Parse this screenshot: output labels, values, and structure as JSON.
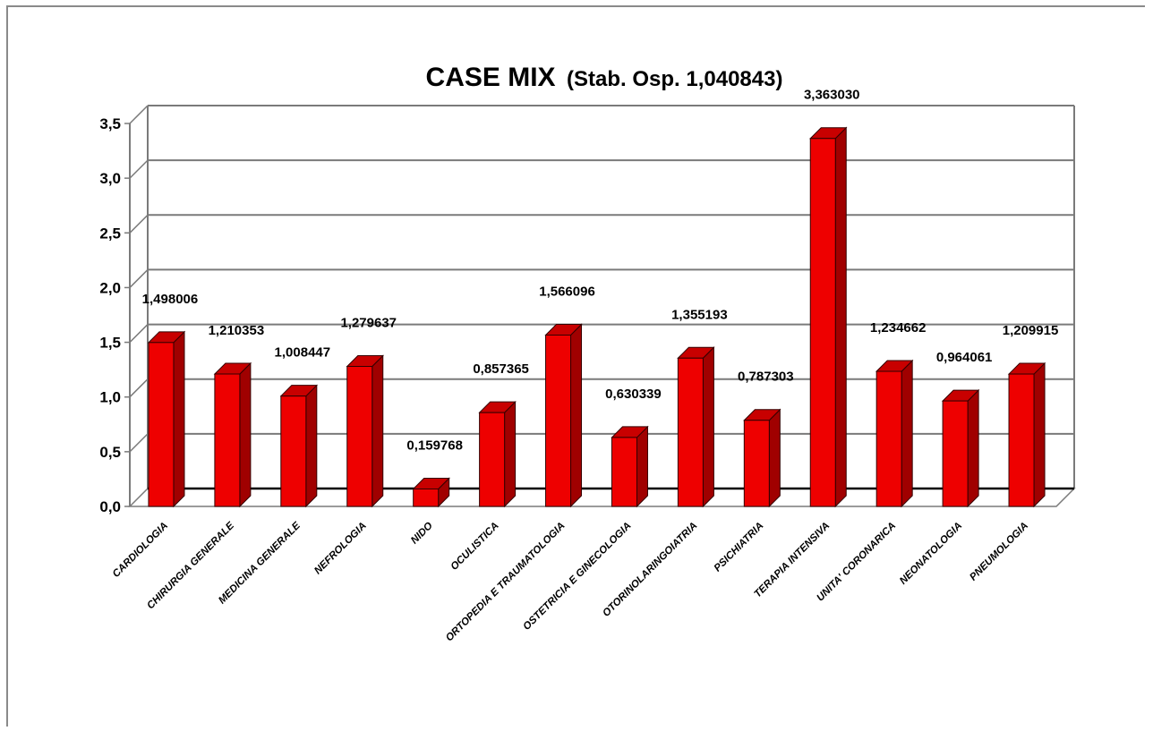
{
  "chart_data": {
    "type": "bar",
    "title": "CASE MIX",
    "subtitle": "(Stab. Osp. 1,040843)",
    "categories": [
      "CARDIOLOGIA",
      "CHIRURGIA GENERALE",
      "MEDICINA GENERALE",
      "NEFROLOGIA",
      "NIDO",
      "OCULISTICA",
      "ORTOPEDIA E TRAUMATOLOGIA",
      "OSTETRICIA E GINECOLOGIA",
      "OTORINOLARINGOIATRIA",
      "PSICHIATRIA",
      "TERAPIA INTENSIVA",
      "UNITA' CORONARICA",
      "NEONATOLOGIA",
      "PNEUMOLOGIA"
    ],
    "values": [
      1.498006,
      1.210353,
      1.008447,
      1.279637,
      0.159768,
      0.857365,
      1.566096,
      0.630339,
      1.355193,
      0.787303,
      3.36303,
      1.234662,
      0.964061,
      1.209915
    ],
    "value_labels": [
      "1,498006",
      "1,210353",
      "1,008447",
      "1,279637",
      "0,159768",
      "0,857365",
      "1,566096",
      "0,630339",
      "1,355193",
      "0,787303",
      "3,363030",
      "1,234662",
      "0,964061",
      "1,209915"
    ],
    "yticks": [
      "0,0",
      "0,5",
      "1,0",
      "1,5",
      "2,0",
      "2,5",
      "3,0",
      "3,5"
    ],
    "ylim": [
      0,
      3.5
    ],
    "grid": true,
    "legend": "none",
    "bar_color": "#ee0000",
    "bar_side_color": "#a00000",
    "bar_top_color": "#c80000"
  }
}
